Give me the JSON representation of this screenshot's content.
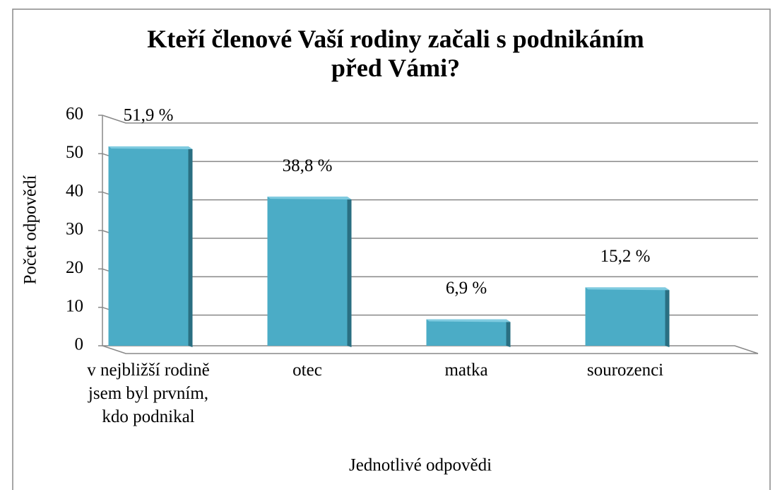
{
  "chart_data": {
    "type": "bar",
    "title": "Kteří členové Vaší rodiny začali s podnikáním před Vámi?",
    "x_label": "Jednotlivé odpovědi",
    "y_label": "Počet odpovědí",
    "categories": [
      "v nejbližší rodině jsem byl prvním, kdo podnikal",
      "otec",
      "matka",
      "sourozenci"
    ],
    "values": [
      51.9,
      38.8,
      6.9,
      15.2
    ],
    "value_labels": [
      "51,9 %",
      "38,8 %",
      "6,9 %",
      "15,2 %"
    ],
    "color": "#4bacc6",
    "ylim": [
      0,
      60
    ],
    "yticks": [
      0,
      10,
      20,
      30,
      40,
      50,
      60
    ],
    "grid": true
  }
}
